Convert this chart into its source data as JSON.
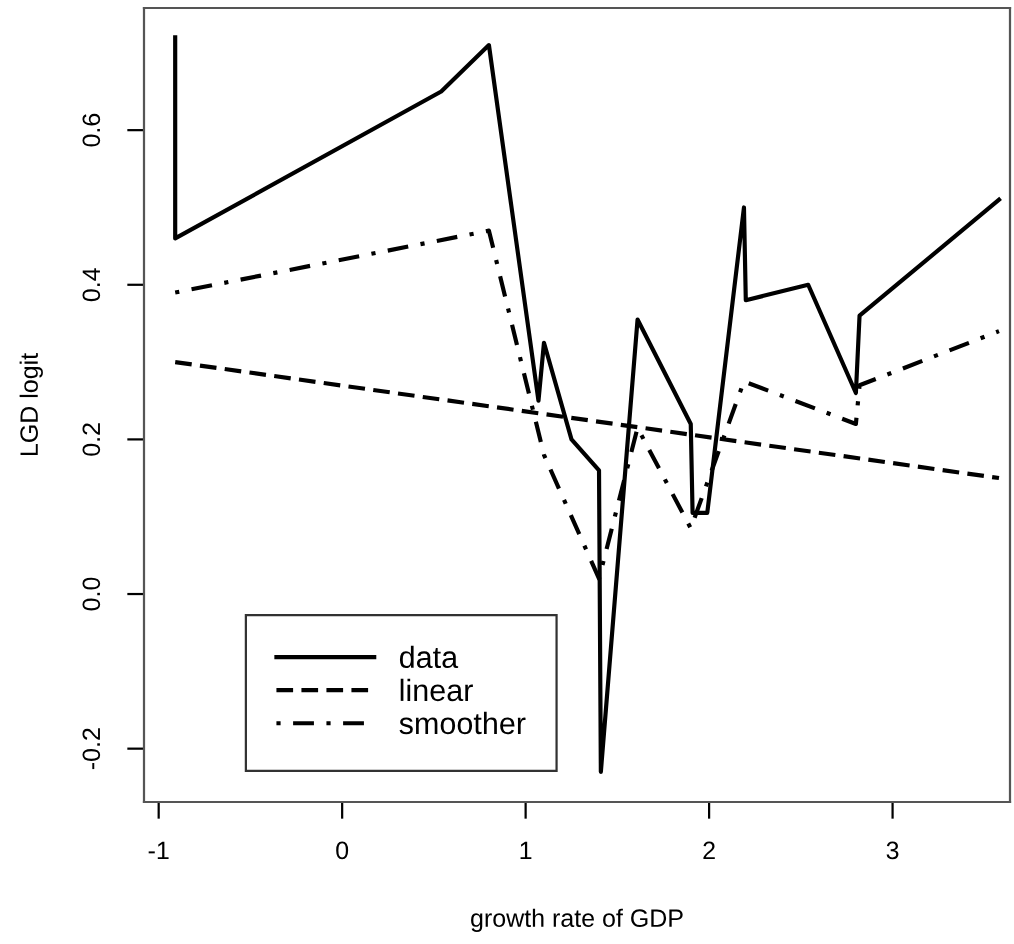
{
  "chart_data": {
    "type": "line",
    "xlabel": "growth rate of GDP",
    "ylabel": "LGD logit",
    "xlim": [
      -1.08,
      3.64
    ],
    "ylim": [
      -0.269,
      0.758
    ],
    "xticks": [
      -1,
      0,
      1,
      2,
      3
    ],
    "yticks": [
      {
        "value": -0.2,
        "label": "-0.2"
      },
      {
        "value": 0.0,
        "label": "0.0"
      },
      {
        "value": 0.2,
        "label": "0.2"
      },
      {
        "value": 0.4,
        "label": "0.4"
      },
      {
        "value": 0.6,
        "label": "0.6"
      }
    ],
    "grid": false,
    "legend": "bottom left",
    "series": [
      {
        "name": "data",
        "color": "#000000",
        "line_style": "solid",
        "x": [
          -0.91,
          -0.91,
          0.54,
          0.8,
          1.07,
          1.1,
          1.25,
          1.4,
          1.41,
          1.61,
          1.9,
          1.91,
          1.99,
          2.19,
          2.2,
          2.54,
          2.8,
          2.82,
          3.58
        ],
        "values": [
          0.72,
          0.46,
          0.65,
          0.71,
          0.25,
          0.325,
          0.2,
          0.16,
          -0.23,
          0.355,
          0.22,
          0.105,
          0.105,
          0.5,
          0.38,
          0.4,
          0.26,
          0.36,
          0.51
        ]
      },
      {
        "name": "linear",
        "color": "#000000",
        "line_style": "dashed",
        "x": [
          -0.91,
          3.58
        ],
        "values": [
          0.3,
          0.15
        ]
      },
      {
        "name": "smoother",
        "color": "#000000",
        "line_style": "dashdot",
        "x": [
          -0.91,
          0.8,
          1.1,
          1.4,
          1.61,
          1.9,
          2.19,
          2.8,
          2.82,
          3.58
        ],
        "values": [
          0.39,
          0.47,
          0.18,
          0.02,
          0.215,
          0.085,
          0.275,
          0.22,
          0.27,
          0.34
        ]
      }
    ]
  }
}
